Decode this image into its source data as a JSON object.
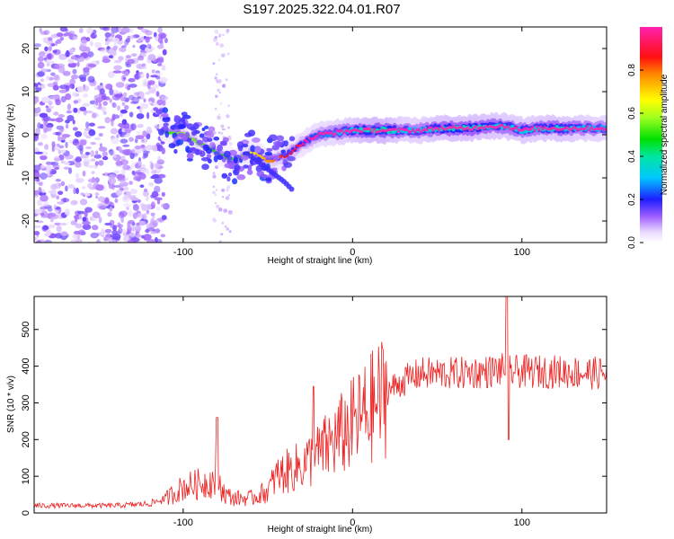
{
  "title": "S197.2025.322.04.01.R07",
  "chart_data": [
    {
      "type": "heatmap",
      "name": "spectrogram",
      "xlabel": "Height of straight line (km)",
      "ylabel": "Frequency (Hz)",
      "xlim": [
        -188,
        150
      ],
      "ylim": [
        -25,
        25
      ],
      "xticks": [
        -100,
        0,
        100
      ],
      "yticks": [
        -20,
        -10,
        0,
        10,
        20
      ],
      "colorbar": {
        "label": "Normalized spectral amplitude",
        "range": [
          0.0,
          1.0
        ],
        "ticks": [
          "0.0",
          "0.2",
          "0.4",
          "0.6",
          "0.8"
        ],
        "colormap": "gist_ncar"
      },
      "ridge": {
        "x": [
          -112,
          -100,
          -90,
          -80,
          -70,
          -60,
          -50,
          -40,
          -30,
          -20,
          -10,
          0,
          10,
          20,
          30,
          40,
          50,
          60,
          70,
          80,
          90,
          100,
          110,
          120,
          130,
          150
        ],
        "y": [
          1,
          0,
          -2,
          -4,
          -6,
          -4,
          -6,
          -5,
          -2,
          0,
          0.5,
          1,
          1,
          1,
          1,
          1,
          1.5,
          1.5,
          1.5,
          2,
          2,
          1,
          1.5,
          1.5,
          1.5,
          1.5
        ],
        "strength": [
          0.25,
          0.3,
          0.28,
          0.25,
          0.25,
          0.35,
          0.4,
          0.45,
          0.5,
          0.6,
          0.7,
          0.8,
          0.95,
          0.95,
          0.75,
          0.75,
          0.85,
          0.9,
          0.9,
          0.85,
          0.8,
          0.8,
          0.8,
          0.85,
          0.8,
          0.7
        ]
      },
      "secondary_ridge": {
        "x": [
          -60,
          -50,
          -40,
          -35
        ],
        "y": [
          -5,
          -8,
          -11,
          -13
        ]
      },
      "noise_region_x": [
        -188,
        -110
      ]
    },
    {
      "type": "line",
      "name": "snr",
      "xlabel": "Height of straight line (km)",
      "ylabel": "SNR (10 * v/v)",
      "xlim": [
        -188,
        150
      ],
      "ylim": [
        0,
        590
      ],
      "xticks": [
        -100,
        0,
        100
      ],
      "yticks": [
        0,
        100,
        200,
        300,
        400,
        500
      ],
      "color": "#ee2222",
      "envelope": {
        "x": [
          -188,
          -140,
          -120,
          -110,
          -100,
          -90,
          -80,
          -75,
          -70,
          -60,
          -50,
          -45,
          -40,
          -30,
          -20,
          -10,
          0,
          10,
          20,
          30,
          40,
          60,
          80,
          88,
          92,
          100,
          120,
          150
        ],
        "y": [
          20,
          20,
          25,
          40,
          70,
          80,
          90,
          50,
          40,
          40,
          60,
          100,
          110,
          130,
          160,
          200,
          240,
          280,
          330,
          360,
          380,
          380,
          385,
          390,
          385,
          385,
          385,
          380
        ]
      },
      "spikes": [
        {
          "x": -80,
          "y": 260
        },
        {
          "x": -23,
          "y": 345
        },
        {
          "x": 91,
          "y": 590
        },
        {
          "x": 92,
          "y": 200
        }
      ]
    }
  ]
}
